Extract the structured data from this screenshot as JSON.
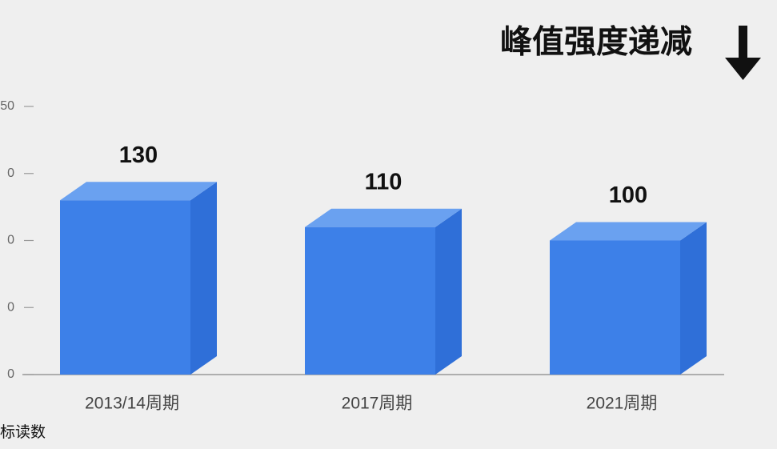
{
  "chart_data": {
    "type": "bar3d",
    "title": "峰值强度递减",
    "axis_note": "标读数",
    "categories": [
      "2013/14周期",
      "2017周期",
      "2021周期"
    ],
    "values": [
      130,
      110,
      100
    ],
    "color": "#3d80e8",
    "ylim": [
      0,
      200
    ],
    "yticks": [
      0,
      {
        "value": 50,
        "label": "0"
      },
      {
        "value": 100,
        "label": "0"
      },
      {
        "value": 150,
        "label": "0"
      },
      {
        "value": 200,
        "label": "50"
      }
    ]
  }
}
